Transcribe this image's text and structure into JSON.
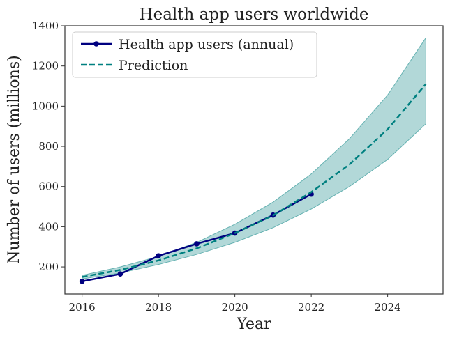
{
  "chart_data": {
    "type": "line",
    "title": "Health app users worldwide",
    "xlabel": "Year",
    "ylabel": "Number of users (millions)",
    "xlim": [
      2015.55,
      2025.45
    ],
    "ylim": [
      65,
      1400
    ],
    "xticks": [
      2016,
      2018,
      2020,
      2022,
      2024
    ],
    "yticks": [
      200,
      400,
      600,
      800,
      1000,
      1200,
      1400
    ],
    "grid": false,
    "legend_position": "top-left",
    "series": [
      {
        "name": "Health app users (annual)",
        "style": "solid-with-markers",
        "color": "#000080",
        "x": [
          2016,
          2017,
          2018,
          2019,
          2020,
          2021,
          2022
        ],
        "y": [
          128,
          165,
          255,
          315,
          368,
          458,
          562
        ]
      },
      {
        "name": "Prediction",
        "style": "dashed",
        "color": "#008080",
        "x": [
          2016,
          2017,
          2018,
          2019,
          2020,
          2021,
          2022,
          2023,
          2024,
          2025
        ],
        "y": [
          150,
          185,
          232,
          292,
          368,
          456,
          572,
          710,
          885,
          1110
        ]
      }
    ],
    "band": {
      "color": "#66b2b2",
      "x": [
        2016,
        2017,
        2018,
        2019,
        2020,
        2021,
        2022,
        2023,
        2024,
        2025
      ],
      "lower": [
        140,
        170,
        212,
        262,
        322,
        395,
        488,
        600,
        735,
        912
      ],
      "upper": [
        158,
        200,
        252,
        322,
        412,
        522,
        662,
        838,
        1055,
        1340
      ]
    }
  }
}
